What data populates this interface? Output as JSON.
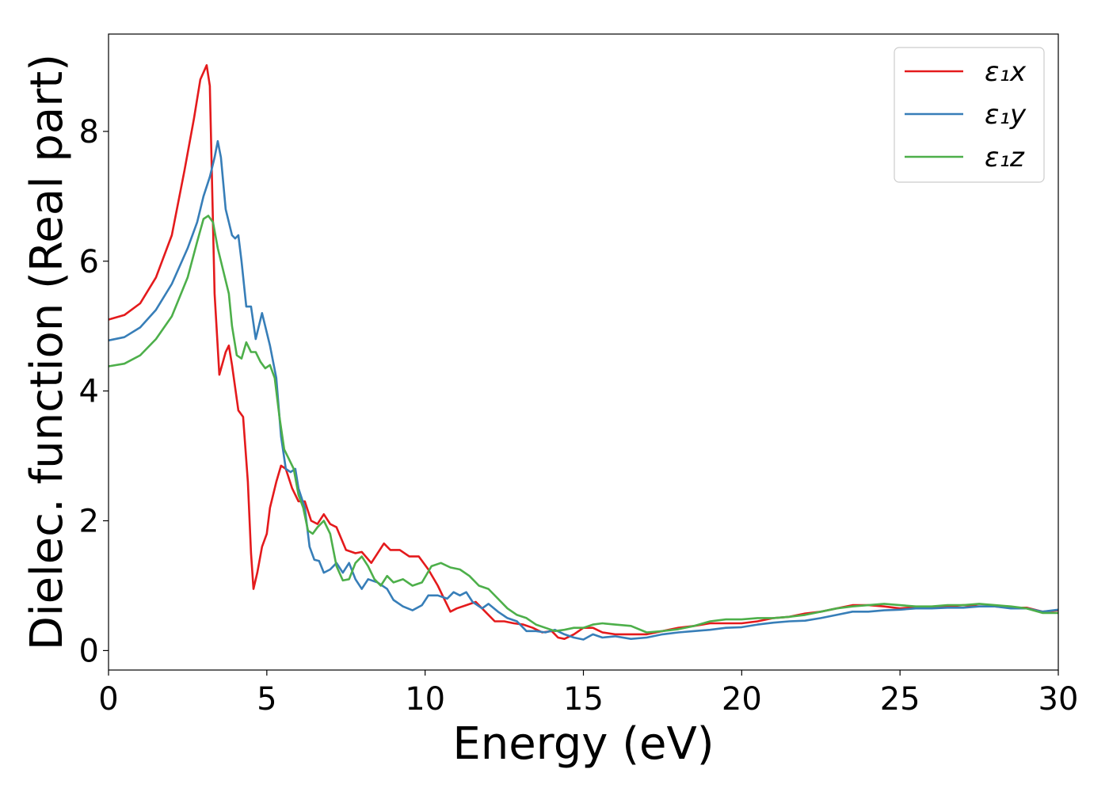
{
  "chart_data": {
    "type": "line",
    "title": "",
    "xlabel": "Energy (eV)",
    "ylabel": "Dielec. function (Real part)",
    "xlim": [
      0,
      30
    ],
    "ylim": [
      -0.3,
      9.5
    ],
    "xticks": [
      0,
      5,
      10,
      15,
      20,
      25,
      30
    ],
    "yticks": [
      0,
      2,
      4,
      6,
      8
    ],
    "grid": false,
    "legend_position": "top-right",
    "series": [
      {
        "name": "ε₁x",
        "color": "#e41a1c",
        "points": [
          [
            0,
            5.1
          ],
          [
            0.5,
            5.17
          ],
          [
            1,
            5.35
          ],
          [
            1.5,
            5.75
          ],
          [
            2,
            6.4
          ],
          [
            2.4,
            7.4
          ],
          [
            2.7,
            8.2
          ],
          [
            2.9,
            8.8
          ],
          [
            3.1,
            9.02
          ],
          [
            3.2,
            8.7
          ],
          [
            3.35,
            5.5
          ],
          [
            3.5,
            4.25
          ],
          [
            3.7,
            4.6
          ],
          [
            3.8,
            4.7
          ],
          [
            3.9,
            4.4
          ],
          [
            4.1,
            3.7
          ],
          [
            4.25,
            3.6
          ],
          [
            4.4,
            2.6
          ],
          [
            4.5,
            1.5
          ],
          [
            4.58,
            0.95
          ],
          [
            4.7,
            1.2
          ],
          [
            4.85,
            1.6
          ],
          [
            5.0,
            1.8
          ],
          [
            5.1,
            2.2
          ],
          [
            5.3,
            2.6
          ],
          [
            5.45,
            2.85
          ],
          [
            5.6,
            2.8
          ],
          [
            5.8,
            2.5
          ],
          [
            6.0,
            2.3
          ],
          [
            6.2,
            2.3
          ],
          [
            6.4,
            2.0
          ],
          [
            6.6,
            1.95
          ],
          [
            6.8,
            2.1
          ],
          [
            7.0,
            1.95
          ],
          [
            7.2,
            1.9
          ],
          [
            7.5,
            1.55
          ],
          [
            7.8,
            1.5
          ],
          [
            8.0,
            1.52
          ],
          [
            8.3,
            1.35
          ],
          [
            8.7,
            1.65
          ],
          [
            8.9,
            1.55
          ],
          [
            9.2,
            1.55
          ],
          [
            9.5,
            1.45
          ],
          [
            9.8,
            1.45
          ],
          [
            10.1,
            1.25
          ],
          [
            10.4,
            1.0
          ],
          [
            10.6,
            0.8
          ],
          [
            10.8,
            0.6
          ],
          [
            11.0,
            0.65
          ],
          [
            11.3,
            0.7
          ],
          [
            11.6,
            0.75
          ],
          [
            11.9,
            0.6
          ],
          [
            12.2,
            0.45
          ],
          [
            12.5,
            0.45
          ],
          [
            12.8,
            0.42
          ],
          [
            13.1,
            0.4
          ],
          [
            13.4,
            0.35
          ],
          [
            13.7,
            0.28
          ],
          [
            14.0,
            0.3
          ],
          [
            14.2,
            0.2
          ],
          [
            14.4,
            0.18
          ],
          [
            14.7,
            0.25
          ],
          [
            15.0,
            0.35
          ],
          [
            15.3,
            0.35
          ],
          [
            15.6,
            0.28
          ],
          [
            16.0,
            0.25
          ],
          [
            16.5,
            0.25
          ],
          [
            17.0,
            0.25
          ],
          [
            17.5,
            0.3
          ],
          [
            18.0,
            0.35
          ],
          [
            18.5,
            0.38
          ],
          [
            19.0,
            0.42
          ],
          [
            19.5,
            0.42
          ],
          [
            20.0,
            0.42
          ],
          [
            20.5,
            0.45
          ],
          [
            21.0,
            0.5
          ],
          [
            21.5,
            0.52
          ],
          [
            22.0,
            0.57
          ],
          [
            22.5,
            0.6
          ],
          [
            23.0,
            0.65
          ],
          [
            23.5,
            0.7
          ],
          [
            24.0,
            0.7
          ],
          [
            24.5,
            0.68
          ],
          [
            25.0,
            0.65
          ],
          [
            25.5,
            0.67
          ],
          [
            26.0,
            0.67
          ],
          [
            26.5,
            0.68
          ],
          [
            27.0,
            0.7
          ],
          [
            27.5,
            0.68
          ],
          [
            28.0,
            0.68
          ],
          [
            28.5,
            0.66
          ],
          [
            29.0,
            0.66
          ],
          [
            29.5,
            0.6
          ],
          [
            30.0,
            0.62
          ]
        ]
      },
      {
        "name": "ε₁y",
        "color": "#377eb8",
        "points": [
          [
            0,
            4.78
          ],
          [
            0.5,
            4.83
          ],
          [
            1,
            4.98
          ],
          [
            1.5,
            5.25
          ],
          [
            2,
            5.65
          ],
          [
            2.5,
            6.2
          ],
          [
            2.8,
            6.6
          ],
          [
            3.0,
            7.0
          ],
          [
            3.2,
            7.3
          ],
          [
            3.35,
            7.6
          ],
          [
            3.45,
            7.85
          ],
          [
            3.55,
            7.6
          ],
          [
            3.7,
            6.8
          ],
          [
            3.9,
            6.4
          ],
          [
            4.0,
            6.35
          ],
          [
            4.1,
            6.4
          ],
          [
            4.2,
            6.0
          ],
          [
            4.35,
            5.3
          ],
          [
            4.5,
            5.3
          ],
          [
            4.65,
            4.8
          ],
          [
            4.75,
            5.0
          ],
          [
            4.85,
            5.2
          ],
          [
            4.95,
            5.0
          ],
          [
            5.1,
            4.7
          ],
          [
            5.3,
            4.2
          ],
          [
            5.45,
            3.3
          ],
          [
            5.6,
            2.8
          ],
          [
            5.75,
            2.75
          ],
          [
            5.9,
            2.8
          ],
          [
            6.0,
            2.5
          ],
          [
            6.2,
            2.2
          ],
          [
            6.35,
            1.6
          ],
          [
            6.5,
            1.4
          ],
          [
            6.65,
            1.38
          ],
          [
            6.8,
            1.2
          ],
          [
            7.0,
            1.25
          ],
          [
            7.2,
            1.35
          ],
          [
            7.4,
            1.2
          ],
          [
            7.6,
            1.35
          ],
          [
            7.8,
            1.1
          ],
          [
            8.0,
            0.95
          ],
          [
            8.2,
            1.1
          ],
          [
            8.5,
            1.05
          ],
          [
            8.8,
            0.95
          ],
          [
            9.0,
            0.78
          ],
          [
            9.3,
            0.68
          ],
          [
            9.6,
            0.62
          ],
          [
            9.9,
            0.7
          ],
          [
            10.1,
            0.85
          ],
          [
            10.4,
            0.85
          ],
          [
            10.7,
            0.8
          ],
          [
            10.9,
            0.9
          ],
          [
            11.1,
            0.85
          ],
          [
            11.3,
            0.9
          ],
          [
            11.5,
            0.75
          ],
          [
            11.8,
            0.65
          ],
          [
            12.0,
            0.72
          ],
          [
            12.3,
            0.6
          ],
          [
            12.6,
            0.5
          ],
          [
            12.9,
            0.45
          ],
          [
            13.2,
            0.3
          ],
          [
            13.5,
            0.3
          ],
          [
            13.8,
            0.28
          ],
          [
            14.1,
            0.32
          ],
          [
            14.4,
            0.25
          ],
          [
            14.7,
            0.2
          ],
          [
            15.0,
            0.17
          ],
          [
            15.3,
            0.25
          ],
          [
            15.6,
            0.2
          ],
          [
            16.0,
            0.22
          ],
          [
            16.5,
            0.18
          ],
          [
            17.0,
            0.2
          ],
          [
            17.5,
            0.25
          ],
          [
            18.0,
            0.28
          ],
          [
            18.5,
            0.3
          ],
          [
            19.0,
            0.32
          ],
          [
            19.5,
            0.35
          ],
          [
            20.0,
            0.36
          ],
          [
            20.5,
            0.4
          ],
          [
            21.0,
            0.43
          ],
          [
            21.5,
            0.45
          ],
          [
            22.0,
            0.46
          ],
          [
            22.5,
            0.5
          ],
          [
            23.0,
            0.55
          ],
          [
            23.5,
            0.6
          ],
          [
            24.0,
            0.6
          ],
          [
            24.5,
            0.62
          ],
          [
            25.0,
            0.63
          ],
          [
            25.5,
            0.65
          ],
          [
            26.0,
            0.65
          ],
          [
            26.5,
            0.66
          ],
          [
            27.0,
            0.66
          ],
          [
            27.5,
            0.68
          ],
          [
            28.0,
            0.68
          ],
          [
            28.5,
            0.65
          ],
          [
            29.0,
            0.65
          ],
          [
            29.5,
            0.6
          ],
          [
            30.0,
            0.63
          ]
        ]
      },
      {
        "name": "ε₁z",
        "color": "#4daf4a",
        "points": [
          [
            0,
            4.38
          ],
          [
            0.5,
            4.42
          ],
          [
            1,
            4.55
          ],
          [
            1.5,
            4.8
          ],
          [
            2,
            5.15
          ],
          [
            2.5,
            5.75
          ],
          [
            2.8,
            6.3
          ],
          [
            3.0,
            6.65
          ],
          [
            3.15,
            6.7
          ],
          [
            3.3,
            6.6
          ],
          [
            3.45,
            6.2
          ],
          [
            3.6,
            5.9
          ],
          [
            3.8,
            5.5
          ],
          [
            3.9,
            5.0
          ],
          [
            4.05,
            4.55
          ],
          [
            4.2,
            4.5
          ],
          [
            4.35,
            4.75
          ],
          [
            4.5,
            4.6
          ],
          [
            4.65,
            4.6
          ],
          [
            4.8,
            4.45
          ],
          [
            4.95,
            4.35
          ],
          [
            5.1,
            4.4
          ],
          [
            5.25,
            4.2
          ],
          [
            5.4,
            3.6
          ],
          [
            5.55,
            3.1
          ],
          [
            5.7,
            2.95
          ],
          [
            5.85,
            2.8
          ],
          [
            6.0,
            2.4
          ],
          [
            6.15,
            2.2
          ],
          [
            6.3,
            1.85
          ],
          [
            6.45,
            1.8
          ],
          [
            6.6,
            1.9
          ],
          [
            6.8,
            2.0
          ],
          [
            7.0,
            1.8
          ],
          [
            7.2,
            1.3
          ],
          [
            7.4,
            1.08
          ],
          [
            7.6,
            1.1
          ],
          [
            7.8,
            1.35
          ],
          [
            8.0,
            1.45
          ],
          [
            8.2,
            1.3
          ],
          [
            8.4,
            1.1
          ],
          [
            8.6,
            1.0
          ],
          [
            8.8,
            1.15
          ],
          [
            9.0,
            1.05
          ],
          [
            9.3,
            1.1
          ],
          [
            9.6,
            1.0
          ],
          [
            9.9,
            1.05
          ],
          [
            10.2,
            1.3
          ],
          [
            10.5,
            1.35
          ],
          [
            10.8,
            1.28
          ],
          [
            11.1,
            1.25
          ],
          [
            11.4,
            1.15
          ],
          [
            11.7,
            1.0
          ],
          [
            12.0,
            0.95
          ],
          [
            12.3,
            0.8
          ],
          [
            12.6,
            0.65
          ],
          [
            12.9,
            0.55
          ],
          [
            13.2,
            0.5
          ],
          [
            13.5,
            0.4
          ],
          [
            13.8,
            0.35
          ],
          [
            14.1,
            0.3
          ],
          [
            14.4,
            0.32
          ],
          [
            14.7,
            0.35
          ],
          [
            15.0,
            0.35
          ],
          [
            15.3,
            0.4
          ],
          [
            15.6,
            0.42
          ],
          [
            16.0,
            0.4
          ],
          [
            16.5,
            0.38
          ],
          [
            17.0,
            0.28
          ],
          [
            17.5,
            0.3
          ],
          [
            18.0,
            0.33
          ],
          [
            18.5,
            0.38
          ],
          [
            19.0,
            0.45
          ],
          [
            19.5,
            0.48
          ],
          [
            20.0,
            0.48
          ],
          [
            20.5,
            0.5
          ],
          [
            21.0,
            0.5
          ],
          [
            21.5,
            0.52
          ],
          [
            22.0,
            0.55
          ],
          [
            22.5,
            0.6
          ],
          [
            23.0,
            0.65
          ],
          [
            23.5,
            0.68
          ],
          [
            24.0,
            0.7
          ],
          [
            24.5,
            0.72
          ],
          [
            25.0,
            0.7
          ],
          [
            25.5,
            0.68
          ],
          [
            26.0,
            0.68
          ],
          [
            26.5,
            0.7
          ],
          [
            27.0,
            0.7
          ],
          [
            27.5,
            0.72
          ],
          [
            28.0,
            0.7
          ],
          [
            28.5,
            0.68
          ],
          [
            29.0,
            0.65
          ],
          [
            29.5,
            0.58
          ],
          [
            30.0,
            0.58
          ]
        ]
      }
    ]
  }
}
